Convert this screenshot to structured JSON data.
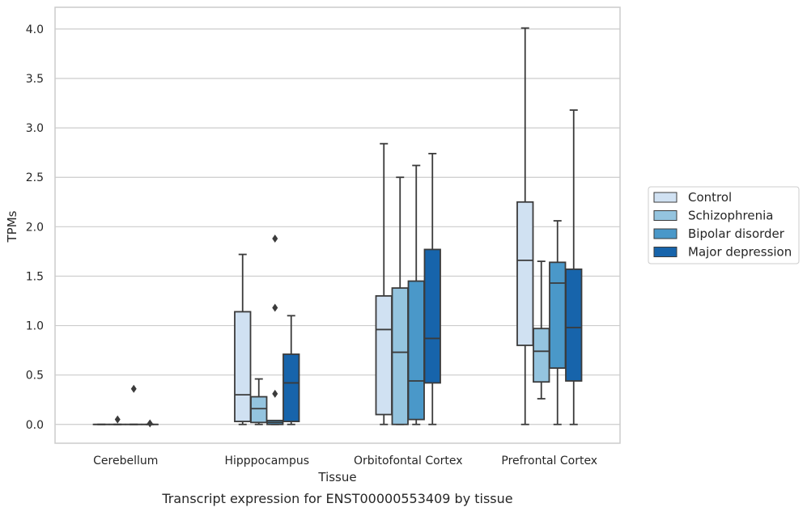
{
  "caption": "Transcript expression for ENST00000553409 by tissue",
  "chart_data": {
    "type": "box",
    "title": "",
    "xlabel": "Tissue",
    "ylabel": "TPMs",
    "ylim": [
      -0.19,
      4.22
    ],
    "yticks": [
      "0.0",
      "0.5",
      "1.0",
      "1.5",
      "2.0",
      "2.5",
      "3.0",
      "3.5",
      "4.0"
    ],
    "grid": true,
    "legend_position": "right",
    "categories": [
      "Cerebellum",
      "Hipppocampus",
      "Orbitofontal Cortex",
      "Prefrontal Cortex"
    ],
    "series": [
      {
        "name": "Control",
        "color": "#d0e1f2",
        "boxes": [
          {
            "whisker_low": 0.0,
            "q1": 0.0,
            "median": 0.0,
            "q3": 0.0,
            "whisker_high": 0.0,
            "outliers": []
          },
          {
            "whisker_low": 0.0,
            "q1": 0.03,
            "median": 0.3,
            "q3": 1.14,
            "whisker_high": 1.72,
            "outliers": []
          },
          {
            "whisker_low": 0.0,
            "q1": 0.1,
            "median": 0.96,
            "q3": 1.3,
            "whisker_high": 2.84,
            "outliers": []
          },
          {
            "whisker_low": 0.0,
            "q1": 0.8,
            "median": 1.66,
            "q3": 2.25,
            "whisker_high": 4.01,
            "outliers": []
          }
        ]
      },
      {
        "name": "Schizophrenia",
        "color": "#94c4df",
        "boxes": [
          {
            "whisker_low": 0.0,
            "q1": 0.0,
            "median": 0.0,
            "q3": 0.0,
            "whisker_high": 0.0,
            "outliers": [
              0.05
            ]
          },
          {
            "whisker_low": 0.0,
            "q1": 0.02,
            "median": 0.16,
            "q3": 0.28,
            "whisker_high": 0.46,
            "outliers": []
          },
          {
            "whisker_low": 0.0,
            "q1": 0.0,
            "median": 0.73,
            "q3": 1.38,
            "whisker_high": 2.5,
            "outliers": []
          },
          {
            "whisker_low": 0.26,
            "q1": 0.43,
            "median": 0.74,
            "q3": 0.97,
            "whisker_high": 1.65,
            "outliers": []
          }
        ]
      },
      {
        "name": "Bipolar disorder",
        "color": "#4a98c9",
        "boxes": [
          {
            "whisker_low": 0.0,
            "q1": 0.0,
            "median": 0.0,
            "q3": 0.0,
            "whisker_high": 0.0,
            "outliers": [
              0.36
            ]
          },
          {
            "whisker_low": 0.0,
            "q1": 0.0,
            "median": 0.02,
            "q3": 0.04,
            "whisker_high": 0.04,
            "outliers": [
              0.31,
              1.18,
              1.88
            ]
          },
          {
            "whisker_low": 0.0,
            "q1": 0.05,
            "median": 0.44,
            "q3": 1.45,
            "whisker_high": 2.62,
            "outliers": []
          },
          {
            "whisker_low": 0.0,
            "q1": 0.57,
            "median": 1.43,
            "q3": 1.64,
            "whisker_high": 2.06,
            "outliers": []
          }
        ]
      },
      {
        "name": "Major depression",
        "color": "#1764ab",
        "boxes": [
          {
            "whisker_low": 0.0,
            "q1": 0.0,
            "median": 0.0,
            "q3": 0.0,
            "whisker_high": 0.0,
            "outliers": [
              0.01
            ]
          },
          {
            "whisker_low": 0.0,
            "q1": 0.03,
            "median": 0.42,
            "q3": 0.71,
            "whisker_high": 1.1,
            "outliers": []
          },
          {
            "whisker_low": 0.0,
            "q1": 0.42,
            "median": 0.87,
            "q3": 1.77,
            "whisker_high": 2.74,
            "outliers": []
          },
          {
            "whisker_low": 0.0,
            "q1": 0.44,
            "median": 0.98,
            "q3": 1.57,
            "whisker_high": 3.18,
            "outliers": []
          }
        ]
      }
    ]
  }
}
